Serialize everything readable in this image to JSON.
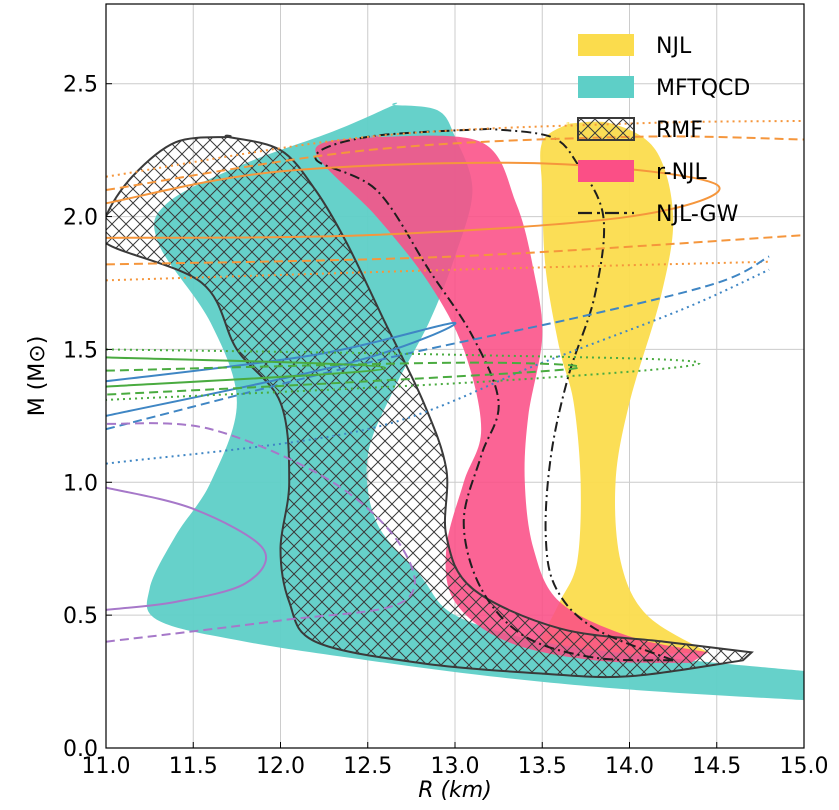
{
  "chart_data": {
    "type": "area",
    "xlabel": "R (km)",
    "ylabel": "M (M⊙)",
    "xlim": [
      11.0,
      15.0
    ],
    "ylim": [
      0.0,
      2.8
    ],
    "xticks": [
      11.0,
      11.5,
      12.0,
      12.5,
      13.0,
      13.5,
      14.0,
      14.5,
      15.0
    ],
    "yticks": [
      0.0,
      0.5,
      1.0,
      1.5,
      2.0,
      2.5
    ],
    "xtick_labels": [
      "11.0",
      "11.5",
      "12.0",
      "12.5",
      "13.0",
      "13.5",
      "14.0",
      "14.5",
      "15.0"
    ],
    "ytick_labels": [
      "0.0",
      "0.5",
      "1.0",
      "1.5",
      "2.0",
      "2.5"
    ],
    "grid": true,
    "legend_position": "top-right",
    "colors": {
      "NJL": "#fbdc4d",
      "MFTQCD": "#5ecfc7",
      "RMF": "#3a3a3a",
      "r-NJL": "#fb4f86",
      "NJL-GW": "#1e1e1e",
      "orange": "#f5963c",
      "blue": "#3f86c4",
      "green": "#4aab40",
      "purple": "#a678c9"
    },
    "series": [
      {
        "name": "NJL",
        "kind": "band",
        "color": "#fbdc4d",
        "left": [
          [
            13.45,
            0.34
          ],
          [
            13.5,
            0.42
          ],
          [
            13.6,
            0.55
          ],
          [
            13.7,
            0.7
          ],
          [
            13.72,
            1.0
          ],
          [
            13.68,
            1.3
          ],
          [
            13.6,
            1.5
          ],
          [
            13.52,
            1.8
          ],
          [
            13.5,
            2.1
          ],
          [
            13.5,
            2.28
          ],
          [
            13.65,
            2.35
          ]
        ],
        "right": [
          [
            14.45,
            0.36
          ],
          [
            14.1,
            0.5
          ],
          [
            13.95,
            0.7
          ],
          [
            13.92,
            1.0
          ],
          [
            14.0,
            1.3
          ],
          [
            14.18,
            1.7
          ],
          [
            14.25,
            2.0
          ],
          [
            14.15,
            2.25
          ],
          [
            13.9,
            2.35
          ],
          [
            13.65,
            2.35
          ]
        ]
      },
      {
        "name": "MFTQCD",
        "kind": "band",
        "color": "#5ecfc7",
        "left": [
          [
            15.0,
            0.18
          ],
          [
            14.0,
            0.22
          ],
          [
            13.2,
            0.27
          ],
          [
            12.5,
            0.33
          ],
          [
            11.8,
            0.4
          ],
          [
            11.3,
            0.48
          ],
          [
            11.25,
            0.6
          ],
          [
            11.4,
            0.8
          ],
          [
            11.6,
            1.0
          ],
          [
            11.75,
            1.3
          ],
          [
            11.6,
            1.6
          ],
          [
            11.3,
            1.9
          ],
          [
            11.35,
            2.05
          ],
          [
            11.8,
            2.2
          ],
          [
            12.3,
            2.32
          ],
          [
            12.65,
            2.42
          ]
        ],
        "right": [
          [
            15.0,
            0.29
          ],
          [
            14.2,
            0.34
          ],
          [
            13.5,
            0.4
          ],
          [
            13.0,
            0.5
          ],
          [
            12.8,
            0.65
          ],
          [
            12.55,
            0.85
          ],
          [
            12.5,
            1.1
          ],
          [
            12.65,
            1.35
          ],
          [
            12.85,
            1.6
          ],
          [
            13.0,
            1.85
          ],
          [
            13.1,
            2.1
          ],
          [
            13.0,
            2.3
          ],
          [
            12.9,
            2.4
          ],
          [
            12.65,
            2.42
          ]
        ]
      },
      {
        "name": "r-NJL",
        "kind": "band",
        "color": "#fb4f86",
        "left": [
          [
            14.35,
            0.32
          ],
          [
            13.8,
            0.33
          ],
          [
            13.3,
            0.4
          ],
          [
            13.0,
            0.55
          ],
          [
            12.95,
            0.75
          ],
          [
            13.05,
            1.0
          ],
          [
            13.15,
            1.2
          ],
          [
            13.05,
            1.5
          ],
          [
            12.85,
            1.75
          ],
          [
            12.55,
            2.0
          ],
          [
            12.2,
            2.25
          ],
          [
            12.55,
            2.3
          ]
        ],
        "right": [
          [
            14.45,
            0.36
          ],
          [
            14.0,
            0.42
          ],
          [
            13.6,
            0.55
          ],
          [
            13.45,
            0.75
          ],
          [
            13.4,
            1.0
          ],
          [
            13.42,
            1.25
          ],
          [
            13.5,
            1.55
          ],
          [
            13.45,
            1.8
          ],
          [
            13.35,
            2.05
          ],
          [
            13.15,
            2.28
          ],
          [
            12.55,
            2.3
          ]
        ]
      },
      {
        "name": "RMF",
        "kind": "band",
        "color": "#3a3a3a",
        "left": [
          [
            14.65,
            0.33
          ],
          [
            14.0,
            0.27
          ],
          [
            13.5,
            0.28
          ],
          [
            12.8,
            0.32
          ],
          [
            12.2,
            0.4
          ],
          [
            12.05,
            0.55
          ],
          [
            12.0,
            0.75
          ],
          [
            12.05,
            1.0
          ],
          [
            12.0,
            1.3
          ],
          [
            11.75,
            1.5
          ],
          [
            11.55,
            1.75
          ],
          [
            11.0,
            1.9
          ],
          [
            11.0,
            2.0
          ],
          [
            11.15,
            2.15
          ],
          [
            11.4,
            2.28
          ],
          [
            11.7,
            2.3
          ]
        ],
        "right": [
          [
            14.7,
            0.36
          ],
          [
            14.2,
            0.4
          ],
          [
            13.6,
            0.45
          ],
          [
            13.1,
            0.6
          ],
          [
            12.95,
            0.8
          ],
          [
            12.95,
            1.05
          ],
          [
            12.82,
            1.3
          ],
          [
            12.6,
            1.6
          ],
          [
            12.38,
            1.9
          ],
          [
            12.2,
            2.1
          ],
          [
            12.0,
            2.25
          ],
          [
            11.7,
            2.3
          ]
        ]
      },
      {
        "name": "NJL-GW",
        "kind": "band-outline",
        "color": "#1e1e1e",
        "left": [
          [
            14.25,
            0.33
          ],
          [
            13.8,
            0.34
          ],
          [
            13.4,
            0.42
          ],
          [
            13.15,
            0.6
          ],
          [
            13.05,
            0.85
          ],
          [
            13.15,
            1.1
          ],
          [
            13.25,
            1.3
          ],
          [
            13.1,
            1.55
          ],
          [
            12.85,
            1.8
          ],
          [
            12.55,
            2.1
          ],
          [
            12.2,
            2.22
          ],
          [
            12.5,
            2.3
          ],
          [
            13.2,
            2.33
          ]
        ],
        "right": [
          [
            14.25,
            0.33
          ],
          [
            13.8,
            0.45
          ],
          [
            13.58,
            0.6
          ],
          [
            13.52,
            0.8
          ],
          [
            13.55,
            1.1
          ],
          [
            13.65,
            1.4
          ],
          [
            13.8,
            1.7
          ],
          [
            13.85,
            2.0
          ],
          [
            13.7,
            2.2
          ],
          [
            13.55,
            2.3
          ],
          [
            13.2,
            2.33
          ]
        ]
      },
      {
        "name": "",
        "kind": "curve",
        "color": "#f5963c",
        "dash": "solid",
        "points": [
          [
            11.0,
            2.05
          ],
          [
            12.0,
            2.17
          ],
          [
            13.5,
            2.2
          ],
          [
            14.5,
            2.12
          ],
          [
            14.0,
            2.0
          ],
          [
            12.5,
            1.93
          ],
          [
            11.0,
            1.92
          ]
        ]
      },
      {
        "name": "",
        "kind": "curve",
        "color": "#f5963c",
        "dash": "dashed",
        "points": [
          [
            11.0,
            2.1
          ],
          [
            12.5,
            2.25
          ],
          [
            14.0,
            2.3
          ],
          [
            15.0,
            2.29
          ]
        ]
      },
      {
        "name": "",
        "kind": "curve",
        "color": "#f5963c",
        "dash": "dashed",
        "points": [
          [
            11.0,
            1.82
          ],
          [
            13.0,
            1.85
          ],
          [
            15.0,
            1.93
          ]
        ]
      },
      {
        "name": "",
        "kind": "curve",
        "color": "#f5963c",
        "dash": "dotted",
        "points": [
          [
            11.0,
            2.15
          ],
          [
            12.5,
            2.3
          ],
          [
            14.0,
            2.35
          ],
          [
            15.0,
            2.36
          ]
        ]
      },
      {
        "name": "",
        "kind": "curve",
        "color": "#f5963c",
        "dash": "dotted",
        "points": [
          [
            11.0,
            1.76
          ],
          [
            13.0,
            1.8
          ],
          [
            14.8,
            1.83
          ]
        ]
      },
      {
        "name": "",
        "kind": "curve",
        "color": "#3f86c4",
        "dash": "solid",
        "points": [
          [
            11.0,
            1.38
          ],
          [
            12.2,
            1.48
          ],
          [
            13.0,
            1.6
          ],
          [
            12.4,
            1.45
          ],
          [
            11.0,
            1.25
          ]
        ]
      },
      {
        "name": "",
        "kind": "curve",
        "color": "#3f86c4",
        "dash": "dashed",
        "points": [
          [
            11.0,
            1.2
          ],
          [
            12.5,
            1.45
          ],
          [
            13.7,
            1.62
          ],
          [
            14.5,
            1.75
          ],
          [
            14.8,
            1.85
          ]
        ]
      },
      {
        "name": "",
        "kind": "curve",
        "color": "#3f86c4",
        "dash": "dotted",
        "points": [
          [
            11.0,
            1.07
          ],
          [
            12.5,
            1.2
          ],
          [
            13.5,
            1.45
          ],
          [
            14.3,
            1.65
          ],
          [
            14.8,
            1.8
          ]
        ]
      },
      {
        "name": "",
        "kind": "curve",
        "color": "#4aab40",
        "dash": "solid",
        "points": [
          [
            11.0,
            1.47
          ],
          [
            12.6,
            1.43
          ],
          [
            11.0,
            1.36
          ]
        ]
      },
      {
        "name": "",
        "kind": "curve",
        "color": "#4aab40",
        "dash": "dashed",
        "points": [
          [
            11.0,
            1.42
          ],
          [
            13.0,
            1.45
          ],
          [
            13.7,
            1.43
          ],
          [
            12.5,
            1.38
          ],
          [
            11.0,
            1.33
          ]
        ]
      },
      {
        "name": "",
        "kind": "curve",
        "color": "#4aab40",
        "dash": "dotted",
        "points": [
          [
            11.0,
            1.5
          ],
          [
            13.0,
            1.48
          ],
          [
            14.4,
            1.45
          ],
          [
            13.2,
            1.38
          ],
          [
            11.0,
            1.31
          ]
        ]
      },
      {
        "name": "",
        "kind": "curve",
        "color": "#a678c9",
        "dash": "solid",
        "points": [
          [
            11.0,
            0.98
          ],
          [
            11.5,
            0.9
          ],
          [
            11.9,
            0.75
          ],
          [
            11.8,
            0.62
          ],
          [
            11.4,
            0.55
          ],
          [
            11.0,
            0.52
          ]
        ]
      },
      {
        "name": "",
        "kind": "curve",
        "color": "#a678c9",
        "dash": "dashed",
        "points": [
          [
            11.0,
            0.4
          ],
          [
            12.0,
            0.48
          ],
          [
            12.7,
            0.55
          ],
          [
            12.7,
            0.75
          ],
          [
            12.3,
            1.0
          ],
          [
            11.6,
            1.2
          ],
          [
            11.0,
            1.22
          ]
        ]
      }
    ],
    "legend": [
      {
        "label": "NJL",
        "style": "fill",
        "color": "#fbdc4d"
      },
      {
        "label": "MFTQCD",
        "style": "fill",
        "color": "#5ecfc7"
      },
      {
        "label": "RMF",
        "style": "hatch",
        "color": "#3a3a3a"
      },
      {
        "label": "r-NJL",
        "style": "fill",
        "color": "#fb4f86"
      },
      {
        "label": "NJL-GW",
        "style": "dashdot",
        "color": "#1e1e1e"
      }
    ]
  }
}
